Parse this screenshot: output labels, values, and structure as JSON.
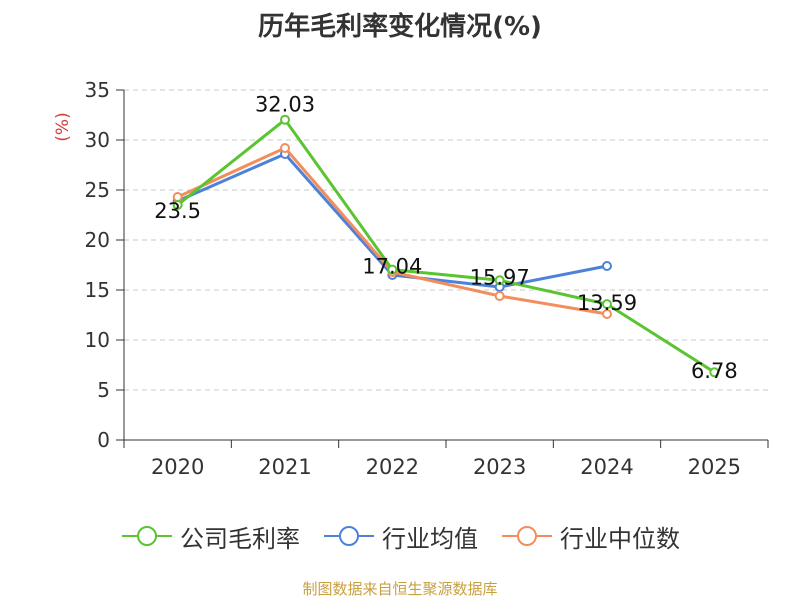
{
  "chart_data": {
    "type": "line",
    "title": "历年毛利率变化情况(%)",
    "ylabel": "(%)",
    "ylim": [
      0,
      35
    ],
    "yticks": [
      0,
      5,
      10,
      15,
      20,
      25,
      30,
      35
    ],
    "categories": [
      "2020",
      "2021",
      "2022",
      "2023",
      "2024",
      "2025"
    ],
    "grid": "horizontal-dashed",
    "legend_position": "bottom",
    "series": [
      {
        "name": "公司毛利率",
        "color": "#5ac431",
        "values": [
          23.5,
          32.03,
          17.04,
          15.97,
          13.59,
          6.78
        ],
        "labels": [
          "23.5",
          "32.03",
          "17.04",
          "15.97",
          "13.59",
          "6.78"
        ]
      },
      {
        "name": "行业均值",
        "color": "#4e81d9",
        "values": [
          23.9,
          28.6,
          16.5,
          15.3,
          17.4,
          null
        ]
      },
      {
        "name": "行业中位数",
        "color": "#f28e5b",
        "values": [
          24.3,
          29.2,
          16.8,
          14.4,
          12.6,
          null
        ]
      }
    ]
  },
  "source": "制图数据来自恒生聚源数据库"
}
